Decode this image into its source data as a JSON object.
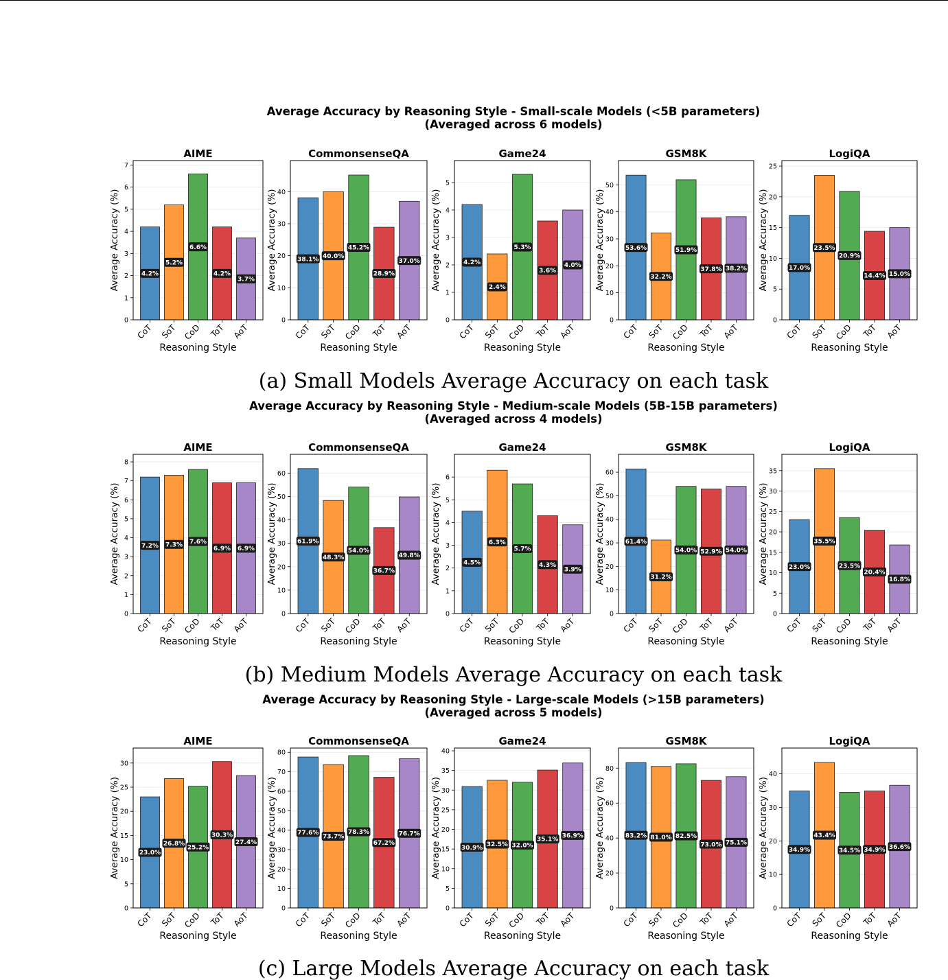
{
  "colors": {
    "CoT": "#4a8bc2",
    "SoT": "#ff9a3c",
    "CoD": "#52ab52",
    "ToT": "#d84445",
    "AoT": "#a887c9",
    "label_bg": "#1a1a1a",
    "label_text": "#ffffff"
  },
  "chart_data": [
    {
      "type": "bar",
      "group": "small",
      "suptitle_line1": "Average Accuracy by Reasoning Style - Small-scale Models (<5B parameters)",
      "suptitle_line2": "(Averaged across 6 models)",
      "caption": "(a) Small Models Average Accuracy on each task",
      "xlabel": "Reasoning Style",
      "ylabel": "Average Accuracy (%)",
      "categories": [
        "CoT",
        "SoT",
        "CoD",
        "ToT",
        "AoT"
      ],
      "subplots": [
        {
          "title": "AIME",
          "values": [
            4.2,
            5.2,
            6.6,
            4.2,
            3.7
          ],
          "labels": [
            "4.2%",
            "5.2%",
            "6.6%",
            "4.2%",
            "3.7%"
          ],
          "ylim": [
            0,
            7.2
          ],
          "yticks": [
            0,
            1,
            2,
            3,
            4,
            5,
            6,
            7
          ]
        },
        {
          "title": "CommonsenseQA",
          "values": [
            38.1,
            40.0,
            45.2,
            28.9,
            37.0
          ],
          "labels": [
            "38.1%",
            "40.0%",
            "45.2%",
            "28.9%",
            "37.0%"
          ],
          "ylim": [
            0,
            49.7
          ],
          "yticks": [
            0,
            10,
            20,
            30,
            40
          ]
        },
        {
          "title": "Game24",
          "values": [
            4.2,
            2.4,
            5.3,
            3.6,
            4.0
          ],
          "labels": [
            "4.2%",
            "2.4%",
            "5.3%",
            "3.6%",
            "4.0%"
          ],
          "ylim": [
            0,
            5.8
          ],
          "yticks": [
            0,
            1,
            2,
            3,
            4,
            5
          ]
        },
        {
          "title": "GSM8K",
          "values": [
            53.6,
            32.2,
            51.9,
            37.8,
            38.2
          ],
          "labels": [
            "53.6%",
            "32.2%",
            "51.9%",
            "37.8%",
            "38.2%"
          ],
          "ylim": [
            0,
            59
          ],
          "yticks": [
            0,
            10,
            20,
            30,
            40,
            50
          ]
        },
        {
          "title": "LogiQA",
          "values": [
            17.0,
            23.5,
            20.9,
            14.4,
            15.0
          ],
          "labels": [
            "17.0%",
            "23.5%",
            "20.9%",
            "14.4%",
            "15.0%"
          ],
          "ylim": [
            0,
            25.9
          ],
          "yticks": [
            0,
            5,
            10,
            15,
            20,
            25
          ]
        }
      ]
    },
    {
      "type": "bar",
      "group": "medium",
      "suptitle_line1": "Average Accuracy by Reasoning Style - Medium-scale Models (5B-15B parameters)",
      "suptitle_line2": "(Averaged across 4 models)",
      "caption": "(b) Medium Models Average Accuracy on each task",
      "xlabel": "Reasoning Style",
      "ylabel": "Average Accuracy (%)",
      "categories": [
        "CoT",
        "SoT",
        "CoD",
        "ToT",
        "AoT"
      ],
      "subplots": [
        {
          "title": "AIME",
          "values": [
            7.2,
            7.3,
            7.6,
            6.9,
            6.9
          ],
          "labels": [
            "7.2%",
            "7.3%",
            "7.6%",
            "6.9%",
            "6.9%"
          ],
          "ylim": [
            0,
            8.4
          ],
          "yticks": [
            0,
            1,
            2,
            3,
            4,
            5,
            6,
            7,
            8
          ]
        },
        {
          "title": "CommonsenseQA",
          "values": [
            61.9,
            48.3,
            54.0,
            36.7,
            49.8
          ],
          "labels": [
            "61.9%",
            "48.3%",
            "54.0%",
            "36.7%",
            "49.8%"
          ],
          "ylim": [
            0,
            68
          ],
          "yticks": [
            0,
            10,
            20,
            30,
            40,
            50,
            60
          ]
        },
        {
          "title": "Game24",
          "values": [
            4.5,
            6.3,
            5.7,
            4.3,
            3.9
          ],
          "labels": [
            "4.5%",
            "6.3%",
            "5.7%",
            "4.3%",
            "3.9%"
          ],
          "ylim": [
            0,
            7
          ],
          "yticks": [
            0,
            1,
            2,
            3,
            4,
            5,
            6
          ]
        },
        {
          "title": "GSM8K",
          "values": [
            61.4,
            31.2,
            54.0,
            52.9,
            54.0
          ],
          "labels": [
            "61.4%",
            "31.2%",
            "54.0%",
            "52.9%",
            "54.0%"
          ],
          "ylim": [
            0,
            67.6
          ],
          "yticks": [
            0,
            10,
            20,
            30,
            40,
            50,
            60
          ]
        },
        {
          "title": "LogiQA",
          "values": [
            23.0,
            35.5,
            23.5,
            20.4,
            16.8
          ],
          "labels": [
            "23.0%",
            "35.5%",
            "23.5%",
            "20.4%",
            "16.8%"
          ],
          "ylim": [
            0,
            39
          ],
          "yticks": [
            0,
            5,
            10,
            15,
            20,
            25,
            30,
            35
          ]
        }
      ]
    },
    {
      "type": "bar",
      "group": "large",
      "suptitle_line1": "Average Accuracy by Reasoning Style - Large-scale Models (>15B parameters)",
      "suptitle_line2": "(Averaged across 5 models)",
      "caption": "(c) Large Models Average Accuracy on each task",
      "xlabel": "Reasoning Style",
      "ylabel": "Average Accuracy (%)",
      "categories": [
        "CoT",
        "SoT",
        "CoD",
        "ToT",
        "AoT"
      ],
      "subplots": [
        {
          "title": "AIME",
          "values": [
            23.0,
            26.8,
            25.2,
            30.3,
            27.4
          ],
          "labels": [
            "23.0%",
            "26.8%",
            "25.2%",
            "30.3%",
            "27.4%"
          ],
          "ylim": [
            0,
            33.1
          ],
          "yticks": [
            0,
            5,
            10,
            15,
            20,
            25,
            30
          ]
        },
        {
          "title": "CommonsenseQA",
          "values": [
            77.6,
            73.7,
            78.3,
            67.2,
            76.7
          ],
          "labels": [
            "77.6%",
            "73.7%",
            "78.3%",
            "67.2%",
            "76.7%"
          ],
          "ylim": [
            0,
            82.2
          ],
          "yticks": [
            0,
            10,
            20,
            30,
            40,
            50,
            60,
            70,
            80
          ]
        },
        {
          "title": "Game24",
          "values": [
            30.9,
            32.5,
            32.0,
            35.1,
            36.9
          ],
          "labels": [
            "30.9%",
            "32.5%",
            "32.0%",
            "35.1%",
            "36.9%"
          ],
          "ylim": [
            0,
            40.7
          ],
          "yticks": [
            0,
            5,
            10,
            15,
            20,
            25,
            30,
            35,
            40
          ]
        },
        {
          "title": "GSM8K",
          "values": [
            83.2,
            81.0,
            82.5,
            73.0,
            75.1
          ],
          "labels": [
            "83.2%",
            "81.0%",
            "82.5%",
            "73.0%",
            "75.1%"
          ],
          "ylim": [
            0,
            91.5
          ],
          "yticks": [
            0,
            20,
            40,
            60,
            80
          ]
        },
        {
          "title": "LogiQA",
          "values": [
            34.9,
            43.4,
            34.5,
            34.9,
            36.6
          ],
          "labels": [
            "34.9%",
            "43.4%",
            "34.5%",
            "34.9%",
            "36.6%"
          ],
          "ylim": [
            0,
            47.7
          ],
          "yticks": [
            0,
            10,
            20,
            30,
            40
          ]
        }
      ]
    }
  ]
}
